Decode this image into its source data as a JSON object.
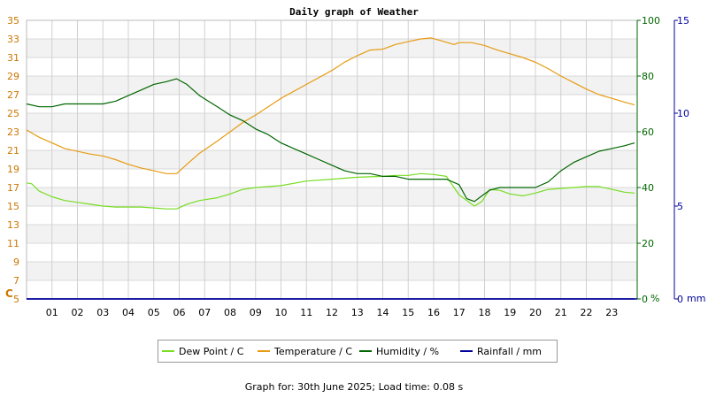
{
  "title": "Daily graph of Weather",
  "footer": "Graph for: 30th June 2025; Load time: 0.08 s",
  "colors": {
    "dewpoint": "#77dd22",
    "temperature": "#e69b12",
    "humidity": "#006600",
    "rainfall": "#000099",
    "left_axis": "#cc7700",
    "mid_axis": "#006600",
    "right_axis": "#000099"
  },
  "chart_data": {
    "type": "line",
    "x_ticks": [
      "01",
      "02",
      "03",
      "04",
      "05",
      "06",
      "07",
      "08",
      "09",
      "10",
      "11",
      "12",
      "13",
      "14",
      "15",
      "16",
      "17",
      "18",
      "19",
      "20",
      "21",
      "22",
      "23"
    ],
    "xlim": [
      0,
      24
    ],
    "left_axis": {
      "unit": "C",
      "ylim": [
        5,
        35
      ],
      "ticks": [
        5,
        7,
        9,
        11,
        13,
        15,
        17,
        19,
        21,
        23,
        25,
        27,
        29,
        31,
        33,
        35
      ]
    },
    "mid_axis": {
      "unit": "%",
      "ylim": [
        0,
        100
      ],
      "ticks": [
        0,
        20,
        40,
        60,
        80,
        100
      ]
    },
    "right_axis": {
      "unit": "mm",
      "ylim": [
        0,
        15
      ],
      "ticks": [
        0,
        5,
        10,
        15
      ]
    },
    "series": [
      {
        "name": "Dew Point / C",
        "axis": "left",
        "x": [
          0,
          0.2,
          0.5,
          1,
          1.5,
          2,
          2.5,
          3,
          3.5,
          4,
          4.5,
          5,
          5.5,
          5.9,
          6.3,
          6.8,
          7.5,
          8,
          8.5,
          9,
          10,
          11,
          12,
          13,
          14,
          14.5,
          15,
          15.5,
          16,
          16.5,
          16.8,
          17,
          17.3,
          17.6,
          17.9,
          18.2,
          18.6,
          19,
          19.5,
          20,
          20.5,
          21,
          21.5,
          22,
          22.5,
          23,
          23.5,
          23.9
        ],
        "values": [
          17.5,
          17.4,
          16.6,
          16,
          15.6,
          15.4,
          15.2,
          15,
          14.9,
          14.9,
          14.9,
          14.8,
          14.7,
          14.7,
          15.2,
          15.6,
          15.9,
          16.3,
          16.8,
          17,
          17.2,
          17.7,
          17.9,
          18.1,
          18.2,
          18.3,
          18.3,
          18.5,
          18.4,
          18.2,
          17,
          16.2,
          15.6,
          15,
          15.5,
          16.8,
          16.7,
          16.3,
          16.1,
          16.4,
          16.8,
          16.9,
          17,
          17.1,
          17.1,
          16.8,
          16.5,
          16.4
        ]
      },
      {
        "name": "Temperature / C",
        "axis": "left",
        "x": [
          0,
          0.5,
          1,
          1.5,
          2,
          2.5,
          3,
          3.5,
          4,
          4.5,
          5,
          5.5,
          5.9,
          6.3,
          6.8,
          7.5,
          8,
          8.5,
          9,
          10,
          11,
          12,
          12.5,
          13,
          13.5,
          14,
          14.5,
          15,
          15.5,
          15.9,
          16.3,
          16.8,
          17,
          17.5,
          18,
          18.5,
          19,
          19.5,
          20,
          20.5,
          21,
          21.5,
          22,
          22.5,
          23,
          23.5,
          23.9
        ],
        "values": [
          23.2,
          22.4,
          21.8,
          21.2,
          20.9,
          20.6,
          20.4,
          20,
          19.5,
          19.1,
          18.8,
          18.5,
          18.5,
          19.5,
          20.7,
          22,
          23,
          24,
          24.8,
          26.6,
          28.1,
          29.6,
          30.5,
          31.2,
          31.8,
          31.9,
          32.4,
          32.7,
          33,
          33.1,
          32.8,
          32.4,
          32.6,
          32.6,
          32.3,
          31.8,
          31.4,
          31,
          30.5,
          29.8,
          29,
          28.3,
          27.6,
          27,
          26.6,
          26.2,
          25.9
        ]
      },
      {
        "name": "Humidity / %",
        "axis": "mid",
        "x": [
          0,
          0.5,
          1,
          1.5,
          2,
          2.5,
          3,
          3.5,
          4,
          4.5,
          5,
          5.5,
          5.9,
          6.3,
          6.8,
          7.5,
          8,
          8.5,
          9,
          9.5,
          10,
          10.5,
          11,
          11.5,
          12,
          12.5,
          13,
          13.5,
          14,
          14.5,
          15,
          15.5,
          16,
          16.5,
          17,
          17.3,
          17.6,
          17.9,
          18.2,
          18.6,
          19,
          19.5,
          20,
          20.5,
          21,
          21.5,
          22,
          22.5,
          23,
          23.5,
          23.9
        ],
        "values": [
          70,
          69,
          69,
          70,
          70,
          70,
          70,
          71,
          73,
          75,
          77,
          78,
          79,
          77,
          73,
          69,
          66,
          64,
          61,
          59,
          56,
          54,
          52,
          50,
          48,
          46,
          45,
          45,
          44,
          44,
          43,
          43,
          43,
          43,
          41,
          36,
          35,
          37,
          39,
          40,
          40,
          40,
          40,
          42,
          46,
          49,
          51,
          53,
          54,
          55,
          56
        ]
      },
      {
        "name": "Rainfall / mm",
        "axis": "right",
        "x": [
          0,
          23.9
        ],
        "values": [
          0,
          0
        ]
      }
    ],
    "legend": [
      "Dew Point / C",
      "Temperature / C",
      "Humidity / %",
      "Rainfall / mm"
    ],
    "legend_placement": "bottom",
    "grid": true
  }
}
